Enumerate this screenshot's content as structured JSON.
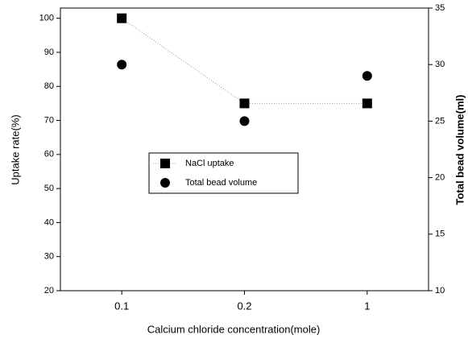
{
  "chart_data": {
    "type": "line",
    "x_label": "Calcium chloride concentration(mole)",
    "y_label": "Uptake rate(%)",
    "y2_label": "Total bead volume(ml)",
    "categories": [
      "0.1",
      "0.2",
      "1"
    ],
    "series": [
      {
        "name": "NaCl uptake",
        "color": "#000000",
        "marker": "square",
        "line": true,
        "values": [
          100,
          75,
          75
        ]
      },
      {
        "name": "Total bead volume",
        "color": "#000000",
        "marker": "circle",
        "line": false,
        "axis": "y2",
        "values": [
          30,
          25,
          29
        ]
      }
    ],
    "ylim": [
      20,
      103
    ],
    "yticks": [
      20,
      30,
      40,
      50,
      60,
      70,
      80,
      90,
      100
    ],
    "y2lim": [
      10,
      35
    ],
    "y2ticks": [
      10,
      15,
      20,
      25,
      30,
      35
    ],
    "legend": "center"
  }
}
